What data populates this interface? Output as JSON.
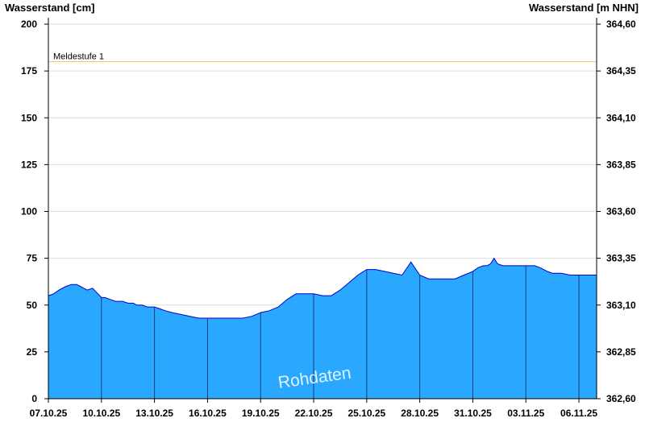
{
  "chart_data": {
    "type": "area",
    "left_axis_title": "Wasserstand [cm]",
    "right_axis_title": "Wasserstand [m NHN]",
    "watermark": "Rohdaten",
    "ylim": [
      0,
      200
    ],
    "y_ticks": [
      0,
      25,
      50,
      75,
      100,
      125,
      150,
      175,
      200
    ],
    "y_ticks_right": [
      "362,60",
      "362,85",
      "363,10",
      "363,35",
      "363,60",
      "363,85",
      "364,10",
      "364,35",
      "364,60"
    ],
    "x_ticks": [
      "07.10.25",
      "10.10.25",
      "13.10.25",
      "16.10.25",
      "19.10.25",
      "22.10.25",
      "25.10.25",
      "28.10.25",
      "31.10.25",
      "03.11.25",
      "06.11.25"
    ],
    "threshold": {
      "label": "Meldestufe 1",
      "value": 180,
      "color": "#e8d060"
    },
    "grid": true,
    "colors": {
      "fill": "#2aa8ff",
      "line": "#0000cc",
      "grid": "#dddddd",
      "tick_line": "#1a3a7a"
    },
    "series": [
      {
        "x": [
          0,
          0.3,
          0.6,
          1.0,
          1.3,
          1.6,
          1.8,
          2.0,
          2.2,
          2.5,
          2.8,
          3.0,
          3.2,
          3.5,
          3.8,
          4.0,
          4.2,
          4.5,
          4.8,
          5.0,
          5.3,
          5.6,
          6.0,
          6.3,
          6.6,
          7.0,
          7.5,
          8.0,
          8.5,
          9.0,
          9.5,
          10.0,
          10.5,
          11.0,
          11.5,
          12.0,
          12.5,
          13.0,
          13.5,
          14.0,
          14.5,
          15.0,
          15.5,
          16.0,
          16.5,
          17.0,
          17.5,
          18.0,
          18.5,
          19.0,
          19.5,
          20.0,
          20.5,
          21.0,
          21.5,
          22.0,
          22.5,
          23.0,
          23.5,
          24.0,
          24.3,
          24.6,
          24.8,
          25.0,
          25.2,
          25.4,
          25.7,
          26.0,
          26.5,
          27.0,
          27.5,
          27.8,
          28.0,
          28.2,
          28.5,
          29.0,
          29.5,
          30.0,
          30.5,
          30.8,
          31.0
        ],
        "y": [
          55,
          56,
          58,
          60,
          61,
          61,
          60,
          59,
          58,
          59,
          56,
          54,
          54,
          53,
          52,
          52,
          52,
          51,
          51,
          50,
          50,
          49,
          49,
          48,
          47,
          46,
          45,
          44,
          43,
          43,
          43,
          43,
          43,
          43,
          44,
          46,
          47,
          49,
          53,
          56,
          56,
          56,
          55,
          55,
          58,
          62,
          66,
          69,
          69,
          68,
          67,
          66,
          73,
          66,
          64,
          64,
          64,
          64,
          66,
          68,
          70,
          71,
          71,
          72,
          75,
          72,
          71,
          71,
          71,
          71,
          71,
          70,
          69,
          68,
          67,
          67,
          66,
          66,
          66,
          66,
          66
        ]
      }
    ]
  }
}
